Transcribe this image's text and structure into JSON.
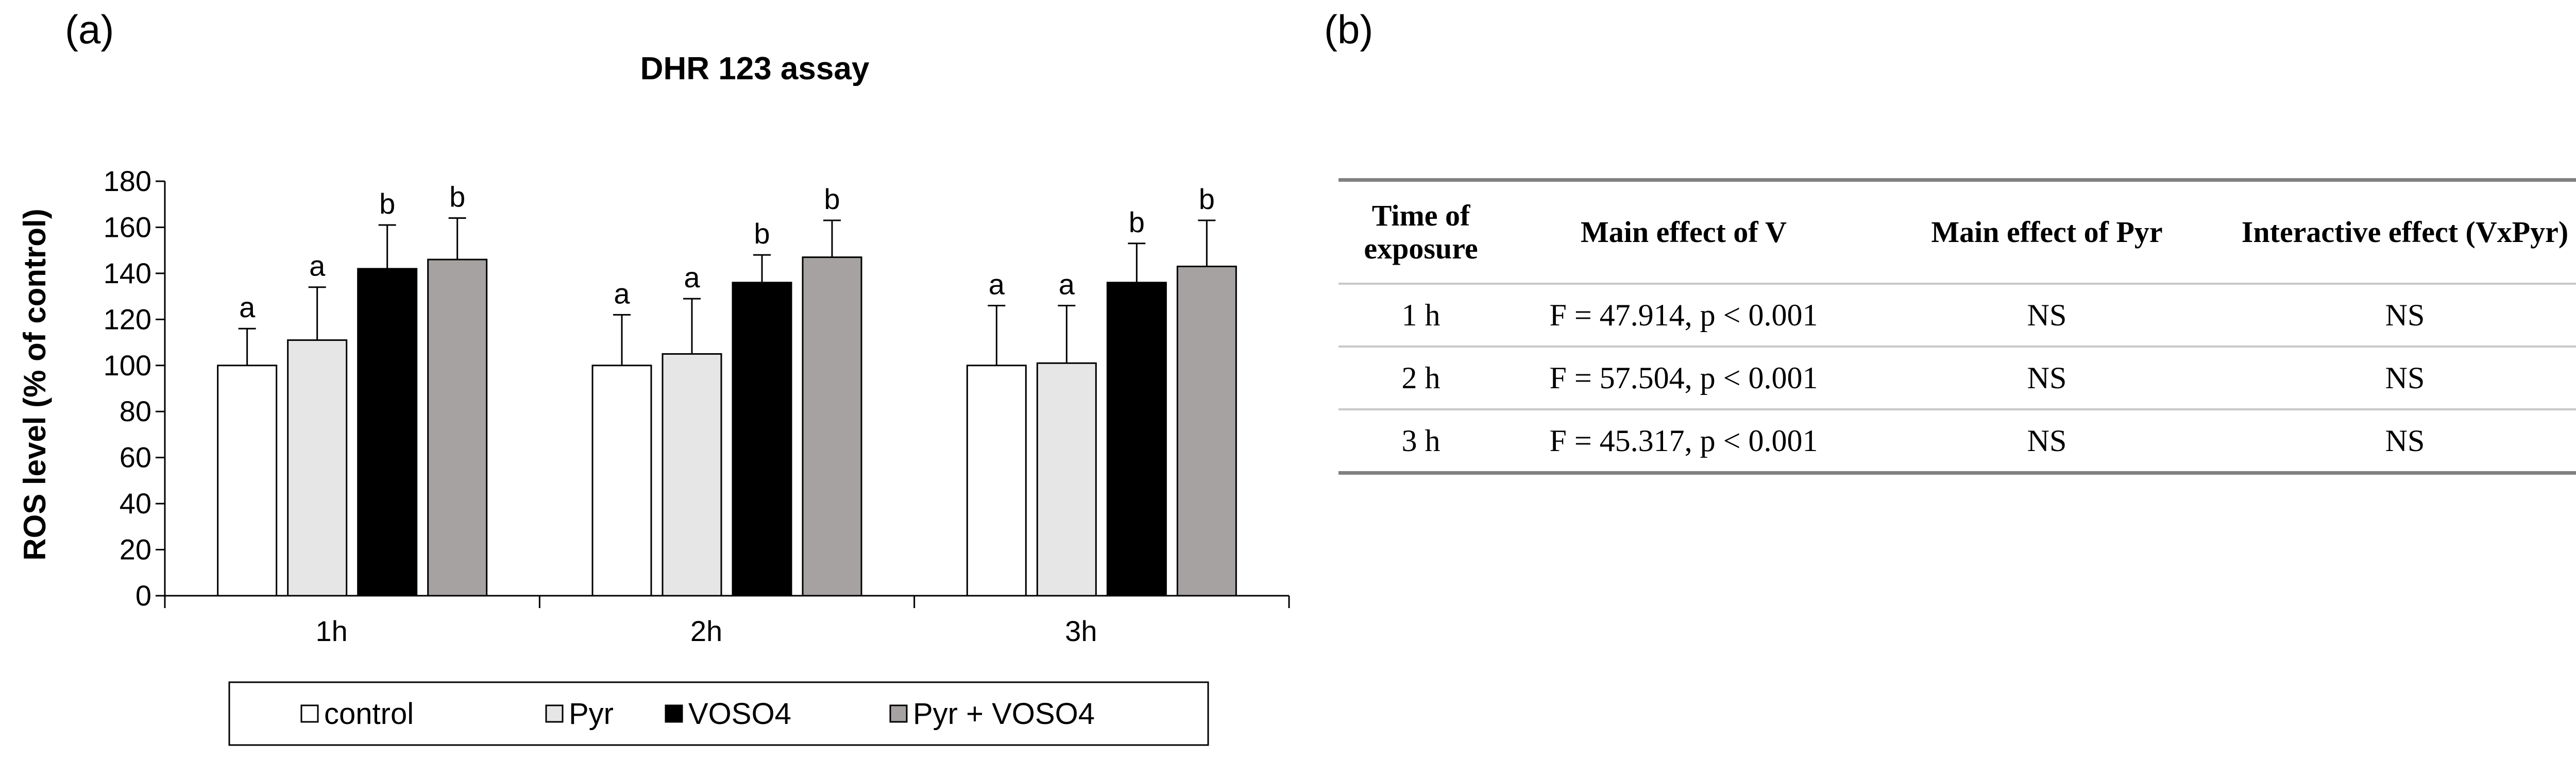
{
  "panel_a_label": "(a)",
  "panel_b_label": "(b)",
  "chart_data": {
    "type": "bar",
    "title": "DHR 123 assay",
    "xlabel": "",
    "ylabel": "ROS level (% of control)",
    "ylim": [
      0,
      180
    ],
    "yticks": [
      0,
      20,
      40,
      60,
      80,
      100,
      120,
      140,
      160,
      180
    ],
    "categories": [
      "1h",
      "2h",
      "3h"
    ],
    "series": [
      {
        "name": "control",
        "color": "#ffffff",
        "values": [
          100,
          100,
          100
        ],
        "errors": [
          16,
          22,
          26
        ],
        "labels": [
          "a",
          "a",
          "a"
        ]
      },
      {
        "name": "Pyr",
        "color": "#e6e6e6",
        "values": [
          111,
          105,
          101
        ],
        "errors": [
          23,
          24,
          25
        ],
        "labels": [
          "a",
          "a",
          "a"
        ]
      },
      {
        "name": "VOSO4",
        "color": "#000000",
        "values": [
          142,
          136,
          136
        ],
        "errors": [
          19,
          12,
          17
        ],
        "labels": [
          "b",
          "b",
          "b"
        ]
      },
      {
        "name": "Pyr + VOSO4",
        "color": "#a6a2a2",
        "values": [
          146,
          147,
          143
        ],
        "errors": [
          18,
          16,
          20
        ],
        "labels": [
          "b",
          "b",
          "b"
        ]
      }
    ],
    "legend_position": "bottom",
    "grid": false
  },
  "stats_table": {
    "headers": [
      "Time of exposure",
      "Main effect of V",
      "Main effect of Pyr",
      "Interactive effect (VxPyr)"
    ],
    "rows": [
      {
        "time": "1 h",
        "v": "F = 47.914, p < 0.001",
        "pyr": "NS",
        "interaction": "NS"
      },
      {
        "time": "2 h",
        "v": "F = 57.504, p < 0.001",
        "pyr": "NS",
        "interaction": "NS"
      },
      {
        "time": "3 h",
        "v": "F = 45.317, p < 0.001",
        "pyr": "NS",
        "interaction": "NS"
      }
    ]
  }
}
